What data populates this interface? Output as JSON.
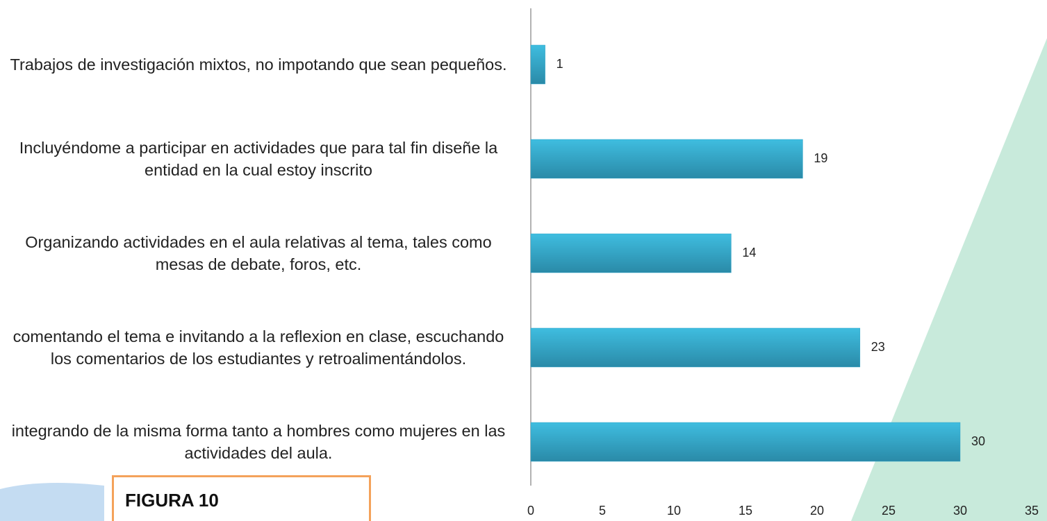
{
  "figure_label": "FIGURA 10",
  "chart_data": {
    "type": "bar",
    "orientation": "horizontal",
    "categories": [
      "Trabajos de investigación mixtos, no impotando que sean pequeños.",
      "Incluyéndome a participar en actividades que para tal fin diseñe la entidad en la cual estoy inscrito",
      "Organizando actividades en el aula relativas al tema, tales como mesas de debate, foros, etc.",
      "comentando el tema e invitando a la reflexion en clase, escuchando los comentarios de los estudiantes y retroalimentándolos.",
      "integrando de la misma forma tanto a hombres como mujeres en las actividades del aula."
    ],
    "values": [
      1,
      19,
      14,
      23,
      30
    ],
    "color": "#2fa3c7",
    "xlim": [
      0,
      35
    ],
    "xticks": [
      0,
      5,
      10,
      15,
      20,
      25,
      30,
      35
    ],
    "grid": false
  }
}
